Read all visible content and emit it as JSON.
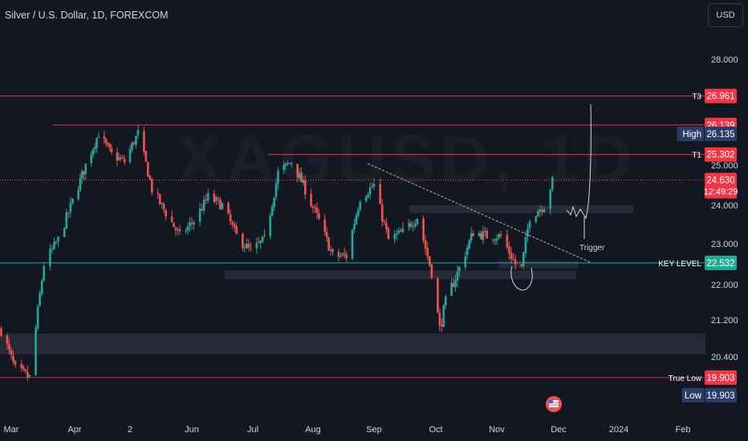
{
  "header": {
    "title": "Silver / U.S. Dollar, 1D, FOREXCOM",
    "currency": "USD"
  },
  "watermark": "XAGUSD, 1D",
  "annotations": {
    "trigger": "Trigger"
  },
  "colors": {
    "background": "#131722",
    "up": "#26a69a",
    "down": "#ef5350",
    "level_red": "#f23645",
    "key_level": "#22ab94",
    "dark_tag": "#2a3d66"
  },
  "chart_data": {
    "type": "candlestick",
    "y_axis": {
      "ticks": [
        "28.000",
        "25.000",
        "24.000",
        "23.000",
        "22.000",
        "21.200",
        "20.400"
      ]
    },
    "x_axis": {
      "ticks": [
        "Mar",
        "Apr",
        "2",
        "Jun",
        "Jul",
        "Aug",
        "Sep",
        "Oct",
        "Nov",
        "Dec",
        "2024",
        "Feb"
      ]
    },
    "levels": [
      {
        "label": "T3",
        "value": "26.961",
        "style": "red"
      },
      {
        "label": "",
        "value": "26.139",
        "style": "red"
      },
      {
        "label": "High",
        "value": "26.135",
        "style": "dark"
      },
      {
        "label": "T1",
        "value": "25.302",
        "style": "red"
      },
      {
        "label": "",
        "value": "24.630",
        "sub": "12:49:29",
        "style": "red"
      },
      {
        "label": "KEY LEVEL",
        "value": "22.532",
        "style": "teal"
      },
      {
        "label": "True Low",
        "value": "19.903",
        "style": "red"
      },
      {
        "label": "Low",
        "value": "19.903",
        "style": "dark"
      }
    ],
    "series_waypoints": [
      [
        "2023-02-24",
        21.0
      ],
      [
        "2023-03-03",
        20.1
      ],
      [
        "2023-03-10",
        19.9
      ],
      [
        "2023-03-17",
        22.5
      ],
      [
        "2023-03-24",
        23.1
      ],
      [
        "2023-03-31",
        24.1
      ],
      [
        "2023-04-07",
        25.0
      ],
      [
        "2023-04-14",
        25.9
      ],
      [
        "2023-04-21",
        25.3
      ],
      [
        "2023-04-28",
        25.1
      ],
      [
        "2023-05-05",
        25.9
      ],
      [
        "2023-05-12",
        24.4
      ],
      [
        "2023-05-19",
        23.8
      ],
      [
        "2023-05-26",
        23.2
      ],
      [
        "2023-06-02",
        23.6
      ],
      [
        "2023-06-09",
        24.2
      ],
      [
        "2023-06-16",
        24.0
      ],
      [
        "2023-06-23",
        23.2
      ],
      [
        "2023-06-30",
        22.8
      ],
      [
        "2023-07-07",
        23.1
      ],
      [
        "2023-07-14",
        24.8
      ],
      [
        "2023-07-21",
        25.1
      ],
      [
        "2023-07-28",
        24.4
      ],
      [
        "2023-08-04",
        23.6
      ],
      [
        "2023-08-11",
        22.7
      ],
      [
        "2023-08-18",
        22.7
      ],
      [
        "2023-08-25",
        24.2
      ],
      [
        "2023-09-01",
        24.5
      ],
      [
        "2023-09-08",
        23.1
      ],
      [
        "2023-09-15",
        23.3
      ],
      [
        "2023-09-22",
        23.7
      ],
      [
        "2023-09-29",
        22.3
      ],
      [
        "2023-10-03",
        21.0
      ],
      [
        "2023-10-06",
        21.6
      ],
      [
        "2023-10-13",
        22.4
      ],
      [
        "2023-10-20",
        23.3
      ],
      [
        "2023-10-27",
        23.2
      ],
      [
        "2023-11-03",
        23.2
      ],
      [
        "2023-11-10",
        22.5
      ],
      [
        "2023-11-13",
        22.4
      ],
      [
        "2023-11-17",
        23.7
      ],
      [
        "2023-11-24",
        24.0
      ],
      [
        "2023-11-28",
        24.6
      ]
    ]
  }
}
